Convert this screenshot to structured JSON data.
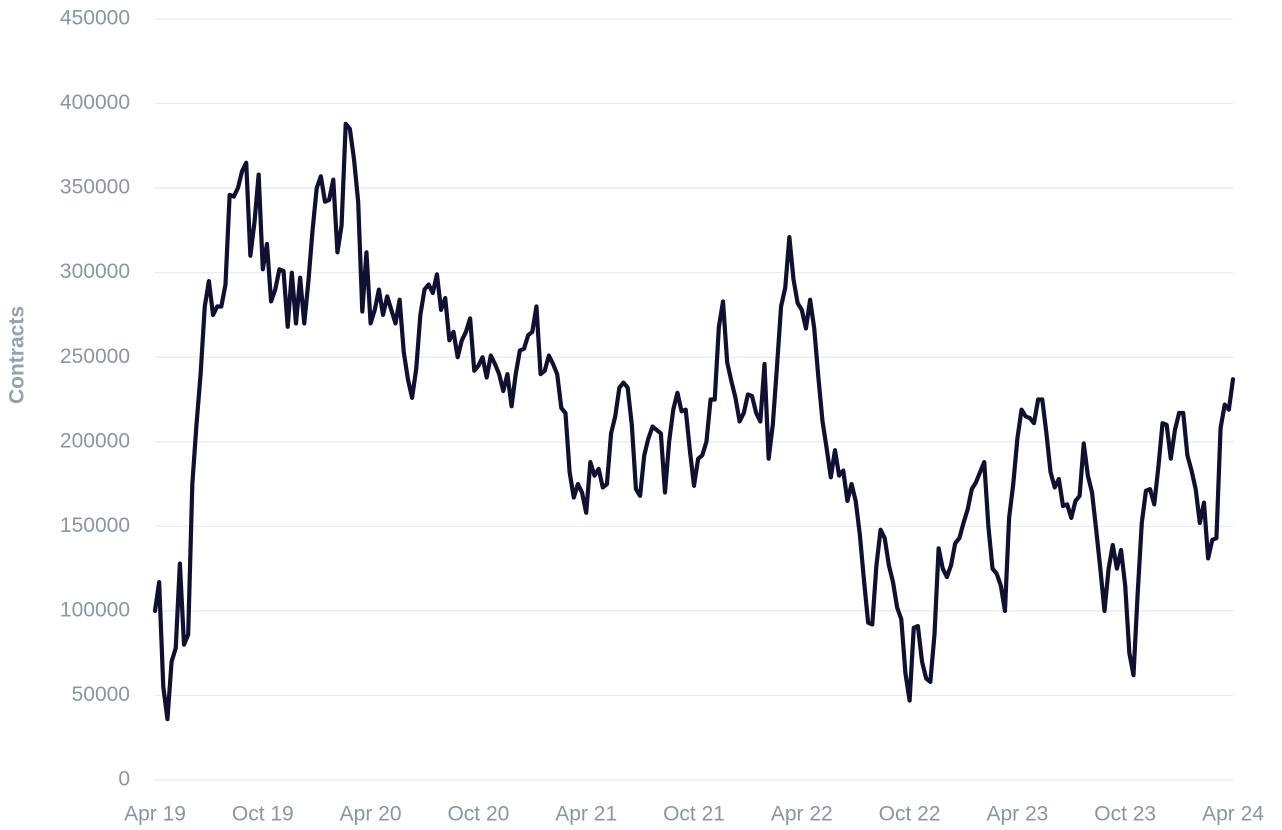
{
  "chart_data": {
    "type": "line",
    "y_label": "Contracts",
    "categories": [
      "Apr 19",
      null,
      null,
      null,
      null,
      null,
      null,
      null,
      null,
      null,
      null,
      null,
      null,
      null,
      null,
      null,
      null,
      null,
      null,
      null,
      null,
      null,
      null,
      null,
      null,
      null,
      "Oct 19",
      null,
      null,
      null,
      null,
      null,
      null,
      null,
      null,
      null,
      null,
      null,
      null,
      null,
      null,
      null,
      null,
      null,
      null,
      null,
      null,
      null,
      null,
      null,
      null,
      null,
      "Apr 20",
      null,
      null,
      null,
      null,
      null,
      null,
      null,
      null,
      null,
      null,
      null,
      null,
      null,
      null,
      null,
      null,
      null,
      null,
      null,
      null,
      null,
      null,
      null,
      null,
      null,
      "Oct 20",
      null,
      null,
      null,
      null,
      null,
      null,
      null,
      null,
      null,
      null,
      null,
      null,
      null,
      null,
      null,
      null,
      null,
      null,
      null,
      null,
      null,
      null,
      null,
      null,
      null,
      "Apr 21",
      null,
      null,
      null,
      null,
      null,
      null,
      null,
      null,
      null,
      null,
      null,
      null,
      null,
      null,
      null,
      null,
      null,
      null,
      null,
      null,
      null,
      null,
      null,
      null,
      null,
      "Oct 21",
      null,
      null,
      null,
      null,
      null,
      null,
      null,
      null,
      null,
      null,
      null,
      null,
      null,
      null,
      null,
      null,
      null,
      null,
      null,
      null,
      null,
      null,
      null,
      null,
      null,
      "Apr 22",
      null,
      null,
      null,
      null,
      null,
      null,
      null,
      null,
      null,
      null,
      null,
      null,
      null,
      null,
      null,
      null,
      null,
      null,
      null,
      null,
      null,
      null,
      null,
      null,
      null,
      "Oct 22",
      null,
      null,
      null,
      null,
      null,
      null,
      null,
      null,
      null,
      null,
      null,
      null,
      null,
      null,
      null,
      null,
      null,
      null,
      null,
      null,
      null,
      null,
      null,
      null,
      null,
      "Apr 23",
      null,
      null,
      null,
      null,
      null,
      null,
      null,
      null,
      null,
      null,
      null,
      null,
      null,
      null,
      null,
      null,
      null,
      null,
      null,
      null,
      null,
      null,
      null,
      null,
      null,
      "Oct 23",
      null,
      null,
      null,
      null,
      null,
      null,
      null,
      null,
      null,
      null,
      null,
      null,
      null,
      null,
      null,
      null,
      null,
      null,
      null,
      null,
      null,
      null,
      null,
      null,
      null,
      "Apr 24"
    ],
    "series": [
      {
        "color": "#0f1032",
        "values": [
          100000,
          117000,
          55000,
          36000,
          70000,
          78000,
          128000,
          80000,
          86000,
          175000,
          210000,
          240000,
          280000,
          295000,
          275000,
          280000,
          280000,
          293000,
          346000,
          345000,
          350000,
          360000,
          365000,
          310000,
          330000,
          358000,
          302000,
          317000,
          283000,
          290000,
          302000,
          301000,
          268000,
          300000,
          270000,
          297000,
          270000,
          295000,
          325000,
          350000,
          357000,
          342000,
          343000,
          355000,
          312000,
          328000,
          388000,
          385000,
          367000,
          342000,
          277000,
          312000,
          270000,
          278000,
          290000,
          275000,
          286000,
          278000,
          270000,
          284000,
          253000,
          237000,
          226000,
          243000,
          275000,
          290000,
          293000,
          288000,
          299000,
          278000,
          285000,
          260000,
          265000,
          250000,
          260000,
          265000,
          273000,
          242000,
          245000,
          250000,
          238000,
          251000,
          246000,
          240000,
          230000,
          240000,
          221000,
          240000,
          254000,
          255000,
          263000,
          265000,
          280000,
          240000,
          242000,
          251000,
          246000,
          240000,
          220000,
          217000,
          182000,
          167000,
          175000,
          170000,
          158000,
          188000,
          180000,
          184000,
          173000,
          175000,
          205000,
          215000,
          232000,
          235000,
          232000,
          210000,
          172000,
          168000,
          192000,
          202000,
          209000,
          207000,
          205000,
          170000,
          200000,
          219000,
          229000,
          218000,
          219000,
          195000,
          174000,
          190000,
          192000,
          200000,
          225000,
          225000,
          268000,
          283000,
          247000,
          236000,
          226000,
          212000,
          217000,
          228000,
          227000,
          217000,
          212000,
          246000,
          190000,
          210000,
          244000,
          280000,
          291000,
          321000,
          296000,
          282000,
          278000,
          267000,
          284000,
          267000,
          238000,
          212000,
          196000,
          179000,
          195000,
          180000,
          183000,
          165000,
          175000,
          165000,
          145000,
          118000,
          93000,
          92000,
          127000,
          148000,
          143000,
          127000,
          117000,
          102000,
          95000,
          63000,
          47000,
          90000,
          91000,
          70000,
          60000,
          58000,
          86000,
          137000,
          125000,
          120000,
          127000,
          140000,
          143000,
          152000,
          160000,
          172000,
          176000,
          182000,
          188000,
          150000,
          125000,
          122000,
          115000,
          100000,
          155000,
          175000,
          202000,
          219000,
          215000,
          214000,
          211000,
          225000,
          225000,
          205000,
          182000,
          173000,
          178000,
          162000,
          163000,
          155000,
          165000,
          168000,
          199000,
          180000,
          170000,
          148000,
          125000,
          100000,
          125000,
          139000,
          125000,
          136000,
          115000,
          75000,
          62000,
          110000,
          152000,
          171000,
          172000,
          163000,
          185000,
          211000,
          210000,
          190000,
          207000,
          217000,
          217000,
          192000,
          183000,
          172000,
          152000,
          164000,
          131000,
          142000,
          143000,
          208000,
          222000,
          219000,
          237000
        ]
      }
    ],
    "ylim": [
      0,
      450000
    ],
    "yticks": [
      0,
      50000,
      100000,
      150000,
      200000,
      250000,
      300000,
      350000,
      400000,
      450000
    ],
    "grid": true
  }
}
